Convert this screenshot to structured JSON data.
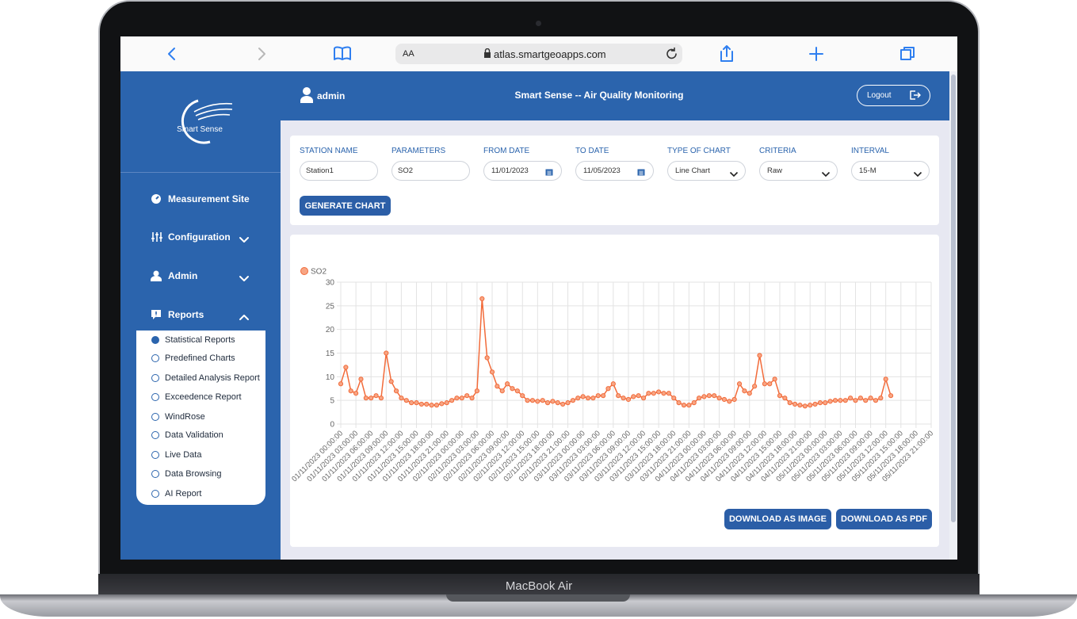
{
  "device": {
    "label": "MacBook Air"
  },
  "browser": {
    "text_size": "AA",
    "url": "atlas.smartgeoapps.com"
  },
  "sidebar": {
    "logo": "Smart Sense",
    "menu": [
      "Measurement Site",
      "Configuration",
      "Admin",
      "Reports"
    ],
    "reports": [
      "Statistical Reports",
      "Predefined Charts",
      "Detailed Analysis Report",
      "Exceedence Report",
      "WindRose",
      "Data Validation",
      "Live Data",
      "Data Browsing",
      "AI Report"
    ]
  },
  "header": {
    "user": "admin",
    "title": "Smart Sense -- Air Quality Monitoring",
    "logout": "Logout"
  },
  "form": {
    "fields": [
      {
        "label": "STATION NAME",
        "value": "Station1"
      },
      {
        "label": "PARAMETERS",
        "value": "SO2"
      },
      {
        "label": "FROM DATE",
        "value": "11/01/2023"
      },
      {
        "label": "TO DATE",
        "value": "11/05/2023"
      },
      {
        "label": "TYPE OF CHART",
        "value": "Line Chart"
      },
      {
        "label": "CRITERIA",
        "value": "Raw"
      },
      {
        "label": "INTERVAL",
        "value": "15-M"
      }
    ],
    "button": "GENERATE CHART"
  },
  "chart_data": {
    "type": "line",
    "categories": [
      "01/11/2023 00:00:00",
      null,
      null,
      "01/11/2023 03:00:00",
      null,
      null,
      "01/11/2023 06:00:00",
      null,
      null,
      "01/11/2023 09:00:00",
      null,
      null,
      "01/11/2023 12:00:00",
      null,
      null,
      "01/11/2023 15:00:00",
      null,
      null,
      "01/11/2023 18:00:00",
      null,
      null,
      "01/11/2023 21:00:00",
      null,
      null,
      "02/11/2023 00:00:00",
      null,
      null,
      "02/11/2023 03:00:00",
      null,
      null,
      "02/11/2023 06:00:00",
      null,
      null,
      "02/11/2023 09:00:00",
      null,
      null,
      "02/11/2023 12:00:00",
      null,
      null,
      "02/11/2023 15:00:00",
      null,
      null,
      "02/11/2023 18:00:00",
      null,
      null,
      "02/11/2023 21:00:00",
      null,
      null,
      "03/11/2023 00:00:00",
      null,
      null,
      "03/11/2023 03:00:00",
      null,
      null,
      "03/11/2023 06:00:00",
      null,
      null,
      "03/11/2023 09:00:00",
      null,
      null,
      "03/11/2023 12:00:00",
      null,
      null,
      "03/11/2023 15:00:00",
      null,
      null,
      "03/11/2023 18:00:00",
      null,
      null,
      "03/11/2023 21:00:00",
      null,
      null,
      "04/11/2023 00:00:00",
      null,
      null,
      "04/11/2023 03:00:00",
      null,
      null,
      "04/11/2023 06:00:00",
      null,
      null,
      "04/11/2023 09:00:00",
      null,
      null,
      "04/11/2023 12:00:00",
      null,
      null,
      "04/11/2023 15:00:00",
      null,
      null,
      "04/11/2023 18:00:00",
      null,
      null,
      "04/11/2023 21:00:00",
      null,
      null,
      "05/11/2023 00:00:00",
      null,
      null,
      "05/11/2023 03:00:00",
      null,
      null,
      "05/11/2023 06:00:00",
      null,
      null,
      "05/11/2023 09:00:00",
      null,
      null,
      "05/11/2023 12:00:00",
      null,
      null,
      "05/11/2023 15:00:00",
      null,
      null,
      "05/11/2023 18:00:00",
      null,
      null,
      "05/11/2023 21:00:00"
    ],
    "series": [
      {
        "name": "SO2",
        "color": "#f26b3a",
        "values": [
          8.5,
          12,
          7,
          6.5,
          9.5,
          5.5,
          5.5,
          6,
          5.5,
          15,
          9,
          7,
          5.5,
          5,
          4.5,
          4.5,
          4.2,
          4.2,
          4,
          4,
          4.3,
          4.5,
          5,
          5.5,
          5.5,
          6,
          5.5,
          7,
          26.5,
          14,
          11,
          8,
          7,
          8.5,
          7.5,
          7,
          6,
          5,
          5,
          4.8,
          5,
          4.5,
          4.8,
          4.5,
          4.2,
          4.5,
          5,
          5.5,
          5.8,
          5.5,
          5.5,
          6,
          6,
          7.5,
          8.5,
          6,
          5.5,
          5.2,
          5.8,
          6,
          5.5,
          6.5,
          6.5,
          6.8,
          6.5,
          6.5,
          5.5,
          4.5,
          4,
          4,
          4.5,
          5.5,
          5.8,
          6,
          6,
          5.5,
          5.2,
          4.8,
          5.2,
          8.5,
          7,
          6.5,
          8,
          14.5,
          8.5,
          8.5,
          9.5,
          6,
          5.5,
          4.5,
          4.2,
          4,
          3.8,
          4,
          4.2,
          4.5,
          4.5,
          4.8,
          5,
          5,
          5,
          5.5,
          5,
          5.5,
          5,
          5.5,
          5,
          5.5,
          9.5,
          6,
          null,
          null,
          null,
          null,
          null,
          null,
          null,
          null
        ]
      }
    ],
    "ylim": [
      0,
      30
    ],
    "yticks": [
      0,
      5,
      10,
      15,
      20,
      25,
      30
    ],
    "grid": true,
    "legend": "top-left"
  },
  "actions": [
    "DOWNLOAD AS IMAGE",
    "DOWNLOAD AS PDF"
  ]
}
